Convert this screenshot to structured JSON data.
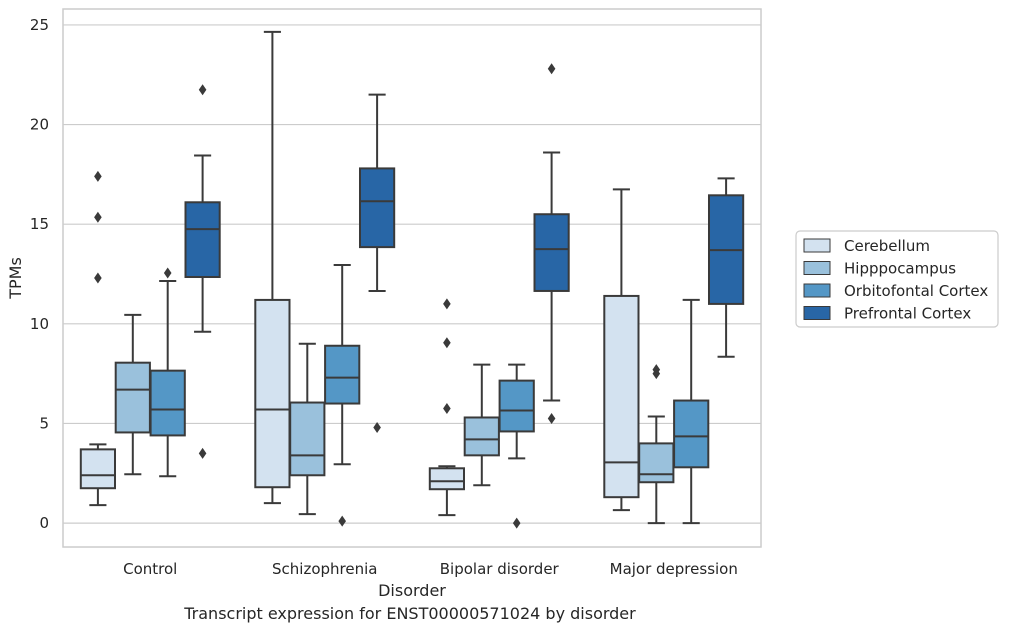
{
  "chart_data": {
    "type": "boxplot",
    "xlabel": "Disorder",
    "ylabel": "TPMs",
    "caption": "Transcript expression for ENST00000571024 by disorder",
    "ylim": [
      -1.2,
      25.8
    ],
    "yticks": [
      0,
      5,
      10,
      15,
      20,
      25
    ],
    "grid": true,
    "legend_position": "right",
    "categories": [
      "Control",
      "Schizophrenia",
      "Bipolar disorder",
      "Major depression"
    ],
    "series": [
      {
        "name": "Cerebellum",
        "color": "#d3e2f0",
        "boxes": [
          {
            "whisker_low": 0.9,
            "q1": 1.75,
            "median": 2.4,
            "q3": 3.7,
            "whisker_high": 3.95,
            "outliers": [
              12.3,
              15.35,
              17.4
            ]
          },
          {
            "whisker_low": 1.0,
            "q1": 1.8,
            "median": 5.7,
            "q3": 11.2,
            "whisker_high": 24.65,
            "outliers": []
          },
          {
            "whisker_low": 0.4,
            "q1": 1.7,
            "median": 2.1,
            "q3": 2.75,
            "whisker_high": 2.85,
            "outliers": [
              5.75,
              9.05,
              11.0
            ]
          },
          {
            "whisker_low": 0.65,
            "q1": 1.3,
            "median": 3.05,
            "q3": 11.4,
            "whisker_high": 16.75,
            "outliers": []
          }
        ]
      },
      {
        "name": "Hipppocampus",
        "color": "#9ac1dc",
        "boxes": [
          {
            "whisker_low": 2.45,
            "q1": 4.55,
            "median": 6.7,
            "q3": 8.05,
            "whisker_high": 10.45,
            "outliers": []
          },
          {
            "whisker_low": 0.45,
            "q1": 2.4,
            "median": 3.4,
            "q3": 6.05,
            "whisker_high": 9.0,
            "outliers": []
          },
          {
            "whisker_low": 1.9,
            "q1": 3.4,
            "median": 4.2,
            "q3": 5.3,
            "whisker_high": 7.95,
            "outliers": []
          },
          {
            "whisker_low": 0.0,
            "q1": 2.05,
            "median": 2.45,
            "q3": 4.0,
            "whisker_high": 5.35,
            "outliers": [
              7.5,
              7.7
            ]
          }
        ]
      },
      {
        "name": "Orbitofontal Cortex",
        "color": "#5497c6",
        "boxes": [
          {
            "whisker_low": 2.35,
            "q1": 4.4,
            "median": 5.7,
            "q3": 7.65,
            "whisker_high": 12.15,
            "outliers": [
              12.55
            ]
          },
          {
            "whisker_low": 2.95,
            "q1": 6.0,
            "median": 7.3,
            "q3": 8.9,
            "whisker_high": 12.95,
            "outliers": [
              0.1
            ]
          },
          {
            "whisker_low": 3.25,
            "q1": 4.6,
            "median": 5.65,
            "q3": 7.15,
            "whisker_high": 7.95,
            "outliers": [
              0.0
            ]
          },
          {
            "whisker_low": 0.0,
            "q1": 2.8,
            "median": 4.35,
            "q3": 6.15,
            "whisker_high": 11.2,
            "outliers": []
          }
        ]
      },
      {
        "name": "Prefrontal Cortex",
        "color": "#2866a6",
        "boxes": [
          {
            "whisker_low": 9.6,
            "q1": 12.35,
            "median": 14.75,
            "q3": 16.1,
            "whisker_high": 18.45,
            "outliers": [
              3.5,
              21.75
            ]
          },
          {
            "whisker_low": 11.65,
            "q1": 13.85,
            "median": 16.15,
            "q3": 17.8,
            "whisker_high": 21.5,
            "outliers": [
              4.8
            ]
          },
          {
            "whisker_low": 6.15,
            "q1": 11.65,
            "median": 13.75,
            "q3": 15.5,
            "whisker_high": 18.6,
            "outliers": [
              5.25,
              22.8
            ]
          },
          {
            "whisker_low": 8.35,
            "q1": 11.0,
            "median": 13.7,
            "q3": 16.45,
            "whisker_high": 17.3,
            "outliers": []
          }
        ]
      }
    ]
  }
}
